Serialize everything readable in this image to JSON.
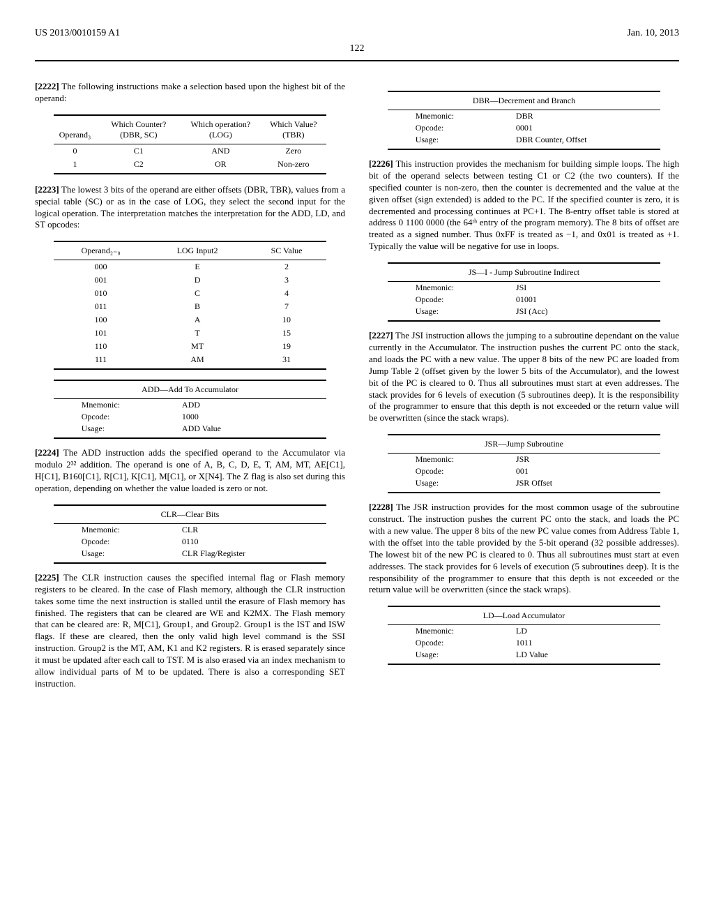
{
  "header": {
    "left": "US 2013/0010159 A1",
    "right": "Jan. 10, 2013",
    "page": "122"
  },
  "left": {
    "p2222": "The following instructions make a selection based upon the highest bit of the operand:",
    "t1": {
      "headers": [
        "Operand₃",
        "Which Counter? (DBR, SC)",
        "Which operation? (LOG)",
        "Which Value? (TBR)"
      ],
      "rows": [
        [
          "0",
          "C1",
          "AND",
          "Zero"
        ],
        [
          "1",
          "C2",
          "OR",
          "Non-zero"
        ]
      ]
    },
    "p2223": "The lowest 3 bits of the operand are either offsets (DBR, TBR), values from a special table (SC) or as in the case of LOG, they select the second input for the logical operation. The interpretation matches the interpretation for the ADD, LD, and ST opcodes:",
    "t2": {
      "headers": [
        "Operand₂₋₀",
        "LOG Input2",
        "SC Value"
      ],
      "rows": [
        [
          "000",
          "E",
          "2"
        ],
        [
          "001",
          "D",
          "3"
        ],
        [
          "010",
          "C",
          "4"
        ],
        [
          "011",
          "B",
          "7"
        ],
        [
          "100",
          "A",
          "10"
        ],
        [
          "101",
          "T",
          "15"
        ],
        [
          "110",
          "MT",
          "19"
        ],
        [
          "111",
          "AM",
          "31"
        ]
      ]
    },
    "add": {
      "title": "ADD—Add To Accumulator",
      "mnemonic": "ADD",
      "opcode": "1000",
      "usage": "ADD Value"
    },
    "p2224": "The ADD instruction adds the specified operand to the Accumulator via modulo 2³² addition. The operand is one of A, B, C, D, E, T, AM, MT, AE[C1], H[C1], B160[C1], R[C1], K[C1], M[C1], or X[N4]. The Z flag is also set during this operation, depending on whether the value loaded is zero or not.",
    "clr": {
      "title": "CLR—Clear Bits",
      "mnemonic": "CLR",
      "opcode": "0110",
      "usage": "CLR Flag/Register"
    },
    "p2225": "The CLR instruction causes the specified internal flag or Flash memory registers to be cleared. In the case of Flash memory, although the CLR instruction takes some time the next instruction is stalled until the erasure of Flash memory has finished. The registers that can be cleared are WE and K2MX. The Flash memory that can be cleared are: R, M[C1], Group1, and Group2. Group1 is the IST and ISW flags. If these are cleared, then the only valid high level command is the SSI instruction. Group2 is the MT, AM, K1 and K2 registers. R is erased separately since it must be updated after each call to TST. M is also erased via an index mechanism to allow individual parts of M to be updated. There is also a corresponding SET instruction."
  },
  "right": {
    "dbr": {
      "title": "DBR—Decrement and Branch",
      "mnemonic": "DBR",
      "opcode": "0001",
      "usage": "DBR Counter, Offset"
    },
    "p2226": "This instruction provides the mechanism for building simple loops. The high bit of the operand selects between testing C1 or C2 (the two counters). If the specified counter is non-zero, then the counter is decremented and the value at the given offset (sign extended) is added to the PC. If the specified counter is zero, it is decremented and processing continues at PC+1. The 8-entry offset table is stored at address 0 1100 0000 (the 64ᵗʰ entry of the program memory). The 8 bits of offset are treated as a signed number. Thus 0xFF is treated as −1, and 0x01 is treated as +1. Typically the value will be negative for use in loops.",
    "jsi": {
      "title": "JS—I - Jump Subroutine Indirect",
      "mnemonic": "JSI",
      "opcode": "01001",
      "usage": "JSI (Acc)"
    },
    "p2227": "The JSI instruction allows the jumping to a subroutine dependant on the value currently in the Accumulator. The instruction pushes the current PC onto the stack, and loads the PC with a new value. The upper 8 bits of the new PC are loaded from Jump Table 2 (offset given by the lower 5 bits of the Accumulator), and the lowest bit of the PC is cleared to 0. Thus all subroutines must start at even addresses. The stack provides for 6 levels of execution (5 subroutines deep). It is the responsibility of the programmer to ensure that this depth is not exceeded or the return value will be overwritten (since the stack wraps).",
    "jsr": {
      "title": "JSR—Jump Subroutine",
      "mnemonic": "JSR",
      "opcode": "001",
      "usage": "JSR Offset"
    },
    "p2228": "The JSR instruction provides for the most common usage of the subroutine construct. The instruction pushes the current PC onto the stack, and loads the PC with a new value. The upper 8 bits of the new PC value comes from Address Table 1, with the offset into the table provided by the 5-bit operand (32 possible addresses). The lowest bit of the new PC is cleared to 0. Thus all subroutines must start at even addresses. The stack provides for 6 levels of execution (5 subroutines deep). It is the responsibility of the programmer to ensure that this depth is not exceeded or the return value will be overwritten (since the stack wraps).",
    "ld": {
      "title": "LD—Load Accumulator",
      "mnemonic": "LD",
      "opcode": "1011",
      "usage": "LD Value"
    }
  },
  "labels": {
    "mnemonic": "Mnemonic:",
    "opcode": "Opcode:",
    "usage": "Usage:"
  }
}
